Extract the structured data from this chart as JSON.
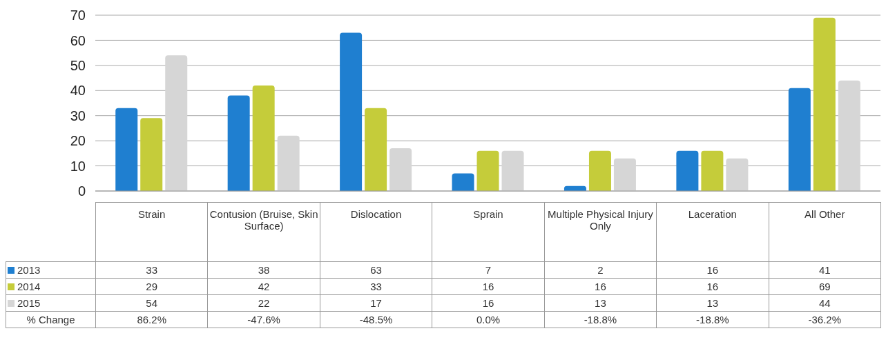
{
  "chart_data": {
    "type": "bar",
    "categories": [
      "Strain",
      "Contusion (Bruise, Skin Surface)",
      "Dislocation",
      "Sprain",
      "Multiple Physical Injury Only",
      "Laceration",
      "All Other"
    ],
    "series": [
      {
        "name": "2013",
        "color": "#1f7fd0",
        "values": [
          33,
          38,
          63,
          7,
          2,
          16,
          41
        ]
      },
      {
        "name": "2014",
        "color": "#c5cc3a",
        "values": [
          29,
          42,
          33,
          16,
          16,
          16,
          69
        ]
      },
      {
        "name": "2015",
        "color": "#d6d6d6",
        "values": [
          54,
          22,
          17,
          16,
          13,
          13,
          44
        ]
      }
    ],
    "ylim": [
      0,
      70
    ],
    "yticks": [
      0,
      10,
      20,
      30,
      40,
      50,
      60,
      70
    ],
    "grid": "y",
    "legend": "bottom left",
    "data_labels": true,
    "annotations": [
      "% Change",
      "86.2%",
      "-47.6%",
      "-48.5%",
      "0.0%",
      "-18.8%",
      "-18.8%",
      "-36.2%"
    ]
  }
}
